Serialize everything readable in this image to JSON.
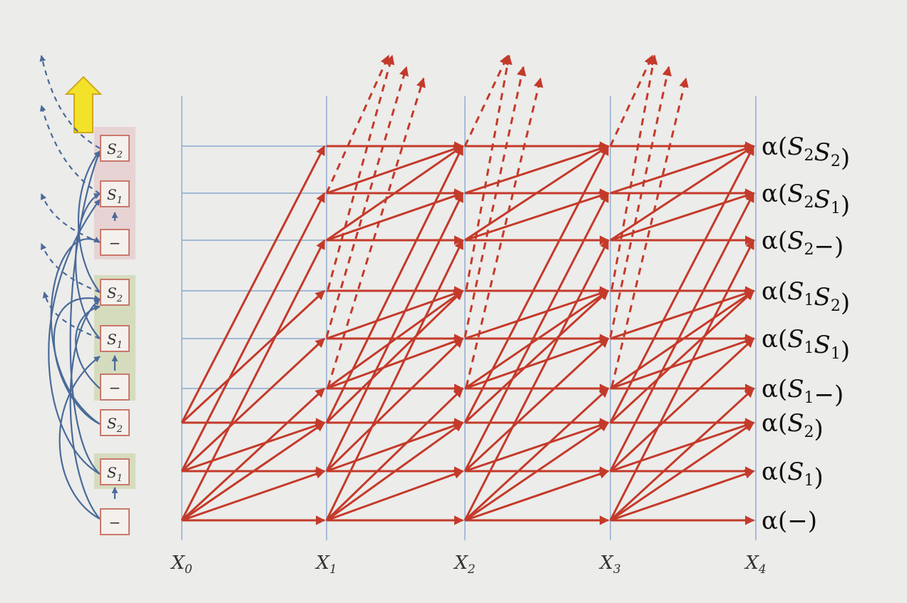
{
  "states": [
    {
      "base": "S",
      "sub": "2"
    },
    {
      "base": "S",
      "sub": "1"
    },
    {
      "base": "−",
      "sub": ""
    },
    {
      "base": "S",
      "sub": "2"
    },
    {
      "base": "S",
      "sub": "1"
    },
    {
      "base": "−",
      "sub": ""
    },
    {
      "base": "S",
      "sub": "2"
    },
    {
      "base": "S",
      "sub": "1"
    },
    {
      "base": "−",
      "sub": ""
    }
  ],
  "rows": [
    {
      "parts": [
        {
          "t": "α(",
          "it": false
        },
        {
          "t": "S",
          "it": true,
          "sub": "2"
        },
        {
          "t": "S",
          "it": true,
          "sub": "2"
        },
        {
          "t": ")",
          "it": false
        }
      ]
    },
    {
      "parts": [
        {
          "t": "α(",
          "it": false
        },
        {
          "t": "S",
          "it": true,
          "sub": "2"
        },
        {
          "t": "S",
          "it": true,
          "sub": "1"
        },
        {
          "t": ")",
          "it": false
        }
      ]
    },
    {
      "parts": [
        {
          "t": "α(",
          "it": false
        },
        {
          "t": "S",
          "it": true,
          "sub": "2"
        },
        {
          "t": "−)",
          "it": false
        }
      ]
    },
    {
      "parts": [
        {
          "t": "α(",
          "it": false
        },
        {
          "t": "S",
          "it": true,
          "sub": "1"
        },
        {
          "t": "S",
          "it": true,
          "sub": "2"
        },
        {
          "t": ")",
          "it": false
        }
      ]
    },
    {
      "parts": [
        {
          "t": "α(",
          "it": false
        },
        {
          "t": "S",
          "it": true,
          "sub": "1"
        },
        {
          "t": "S",
          "it": true,
          "sub": "1"
        },
        {
          "t": ")",
          "it": false
        }
      ]
    },
    {
      "parts": [
        {
          "t": "α(",
          "it": false
        },
        {
          "t": "S",
          "it": true,
          "sub": "1"
        },
        {
          "t": "−)",
          "it": false
        }
      ]
    },
    {
      "parts": [
        {
          "t": "α(",
          "it": false
        },
        {
          "t": "S",
          "it": true,
          "sub": "2"
        },
        {
          "t": ")",
          "it": false
        }
      ]
    },
    {
      "parts": [
        {
          "t": "α(",
          "it": false
        },
        {
          "t": "S",
          "it": true,
          "sub": "1"
        },
        {
          "t": ")",
          "it": false
        }
      ]
    },
    {
      "parts": [
        {
          "t": "α(−)",
          "it": false
        }
      ]
    }
  ],
  "columns": [
    {
      "base": "X",
      "sub": "0"
    },
    {
      "base": "X",
      "sub": "1"
    },
    {
      "base": "X",
      "sub": "2"
    },
    {
      "base": "X",
      "sub": "3"
    },
    {
      "base": "X",
      "sub": "4"
    }
  ],
  "colors": {
    "background": "#ececea",
    "red_arrow": "#c43a2a",
    "grid_blue": "#8aa8d0",
    "curve_blue": "#4a6a9a",
    "group_top": "#e6c9c9",
    "group_mid": "#cfd8b3",
    "up_arrow_fill": "#f2e22a",
    "up_arrow_stroke": "#d0a91a"
  },
  "icons": {
    "scroll_up": "up-arrow-icon",
    "arrowhead": "arrowhead-icon"
  }
}
